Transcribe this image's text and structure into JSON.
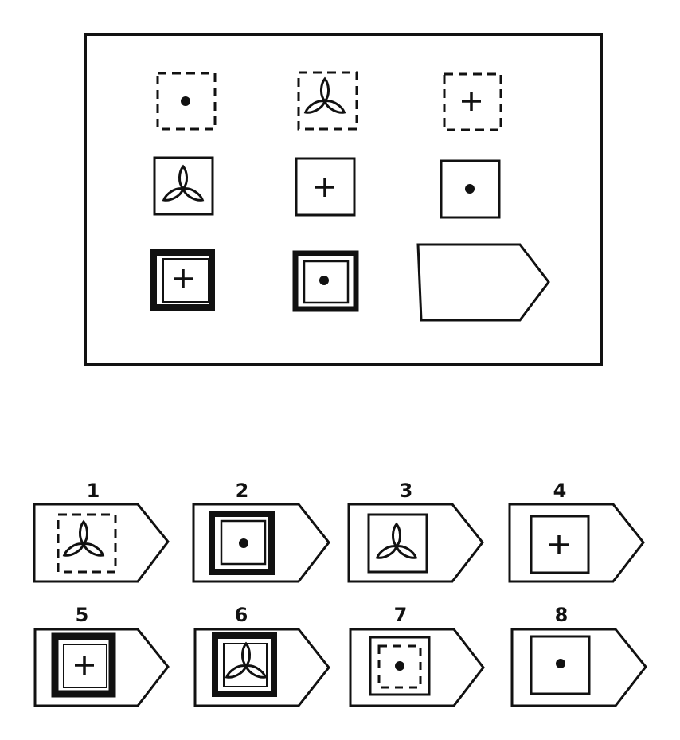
{
  "puzzle": {
    "matrix": [
      [
        {
          "border": "dashed",
          "symbol": "dot"
        },
        {
          "border": "dashed",
          "symbol": "trefoil"
        },
        {
          "border": "dashed",
          "symbol": "plus"
        }
      ],
      [
        {
          "border": "thin",
          "symbol": "trefoil"
        },
        {
          "border": "thin",
          "symbol": "plus"
        },
        {
          "border": "thin",
          "symbol": "dot"
        }
      ],
      [
        {
          "border": "thick",
          "symbol": "plus"
        },
        {
          "border": "thick",
          "symbol": "dot"
        },
        {
          "border": "missing",
          "symbol": ""
        }
      ]
    ]
  },
  "options": [
    {
      "label": "1",
      "border": "dashed",
      "symbol": "trefoil"
    },
    {
      "label": "2",
      "border": "thick",
      "symbol": "dot"
    },
    {
      "label": "3",
      "border": "thin",
      "symbol": "trefoil"
    },
    {
      "label": "4",
      "border": "thin",
      "symbol": "plus"
    },
    {
      "label": "5",
      "border": "thick",
      "symbol": "plus"
    },
    {
      "label": "6",
      "border": "thick",
      "symbol": "trefoil"
    },
    {
      "label": "7",
      "border": "dashed-inner",
      "symbol": "dot"
    },
    {
      "label": "8",
      "border": "thin",
      "symbol": "dot"
    }
  ],
  "colors": {
    "ink": "#111111",
    "paper": "#ffffff"
  }
}
